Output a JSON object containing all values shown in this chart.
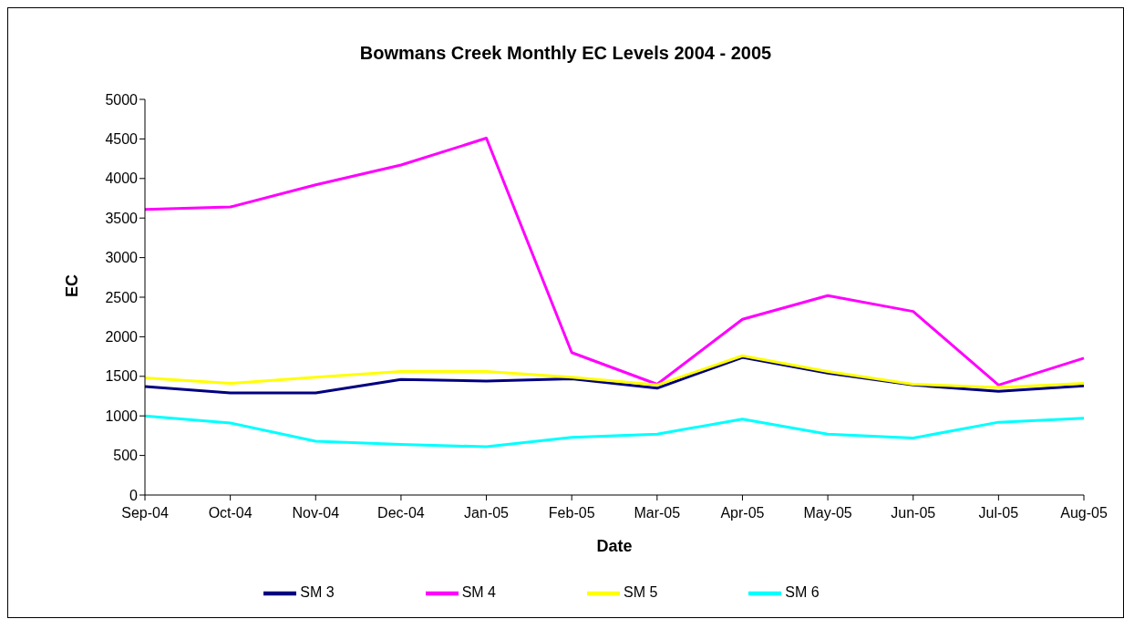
{
  "chart_data": {
    "type": "line",
    "title": "Bowmans Creek Monthly EC Levels 2004 - 2005",
    "xlabel": "Date",
    "ylabel": "EC",
    "categories": [
      "Sep-04",
      "Oct-04",
      "Nov-04",
      "Dec-04",
      "Jan-05",
      "Feb-05",
      "Mar-05",
      "Apr-05",
      "May-05",
      "Jun-05",
      "Jul-05",
      "Aug-05"
    ],
    "series": [
      {
        "name": "SM 3",
        "color": "#000080",
        "values": [
          1370,
          1290,
          1290,
          1460,
          1440,
          1470,
          1350,
          1740,
          1540,
          1390,
          1310,
          1380
        ]
      },
      {
        "name": "SM 4",
        "color": "#ff00ff",
        "values": [
          3610,
          3640,
          3920,
          4170,
          4510,
          1800,
          1400,
          2220,
          2520,
          2320,
          1390,
          1730
        ]
      },
      {
        "name": "SM 5",
        "color": "#ffff00",
        "values": [
          1480,
          1410,
          1490,
          1560,
          1560,
          1490,
          1390,
          1760,
          1560,
          1400,
          1360,
          1410
        ]
      },
      {
        "name": "SM 6",
        "color": "#00ffff",
        "values": [
          1000,
          910,
          680,
          640,
          610,
          730,
          770,
          960,
          770,
          720,
          920,
          970
        ]
      }
    ],
    "ylim": [
      0,
      5000
    ],
    "yticks": [
      0,
      500,
      1000,
      1500,
      2000,
      2500,
      3000,
      3500,
      4000,
      4500,
      5000
    ],
    "grid": false,
    "legend": "bottom",
    "marker": "none",
    "line_style": "solid"
  }
}
